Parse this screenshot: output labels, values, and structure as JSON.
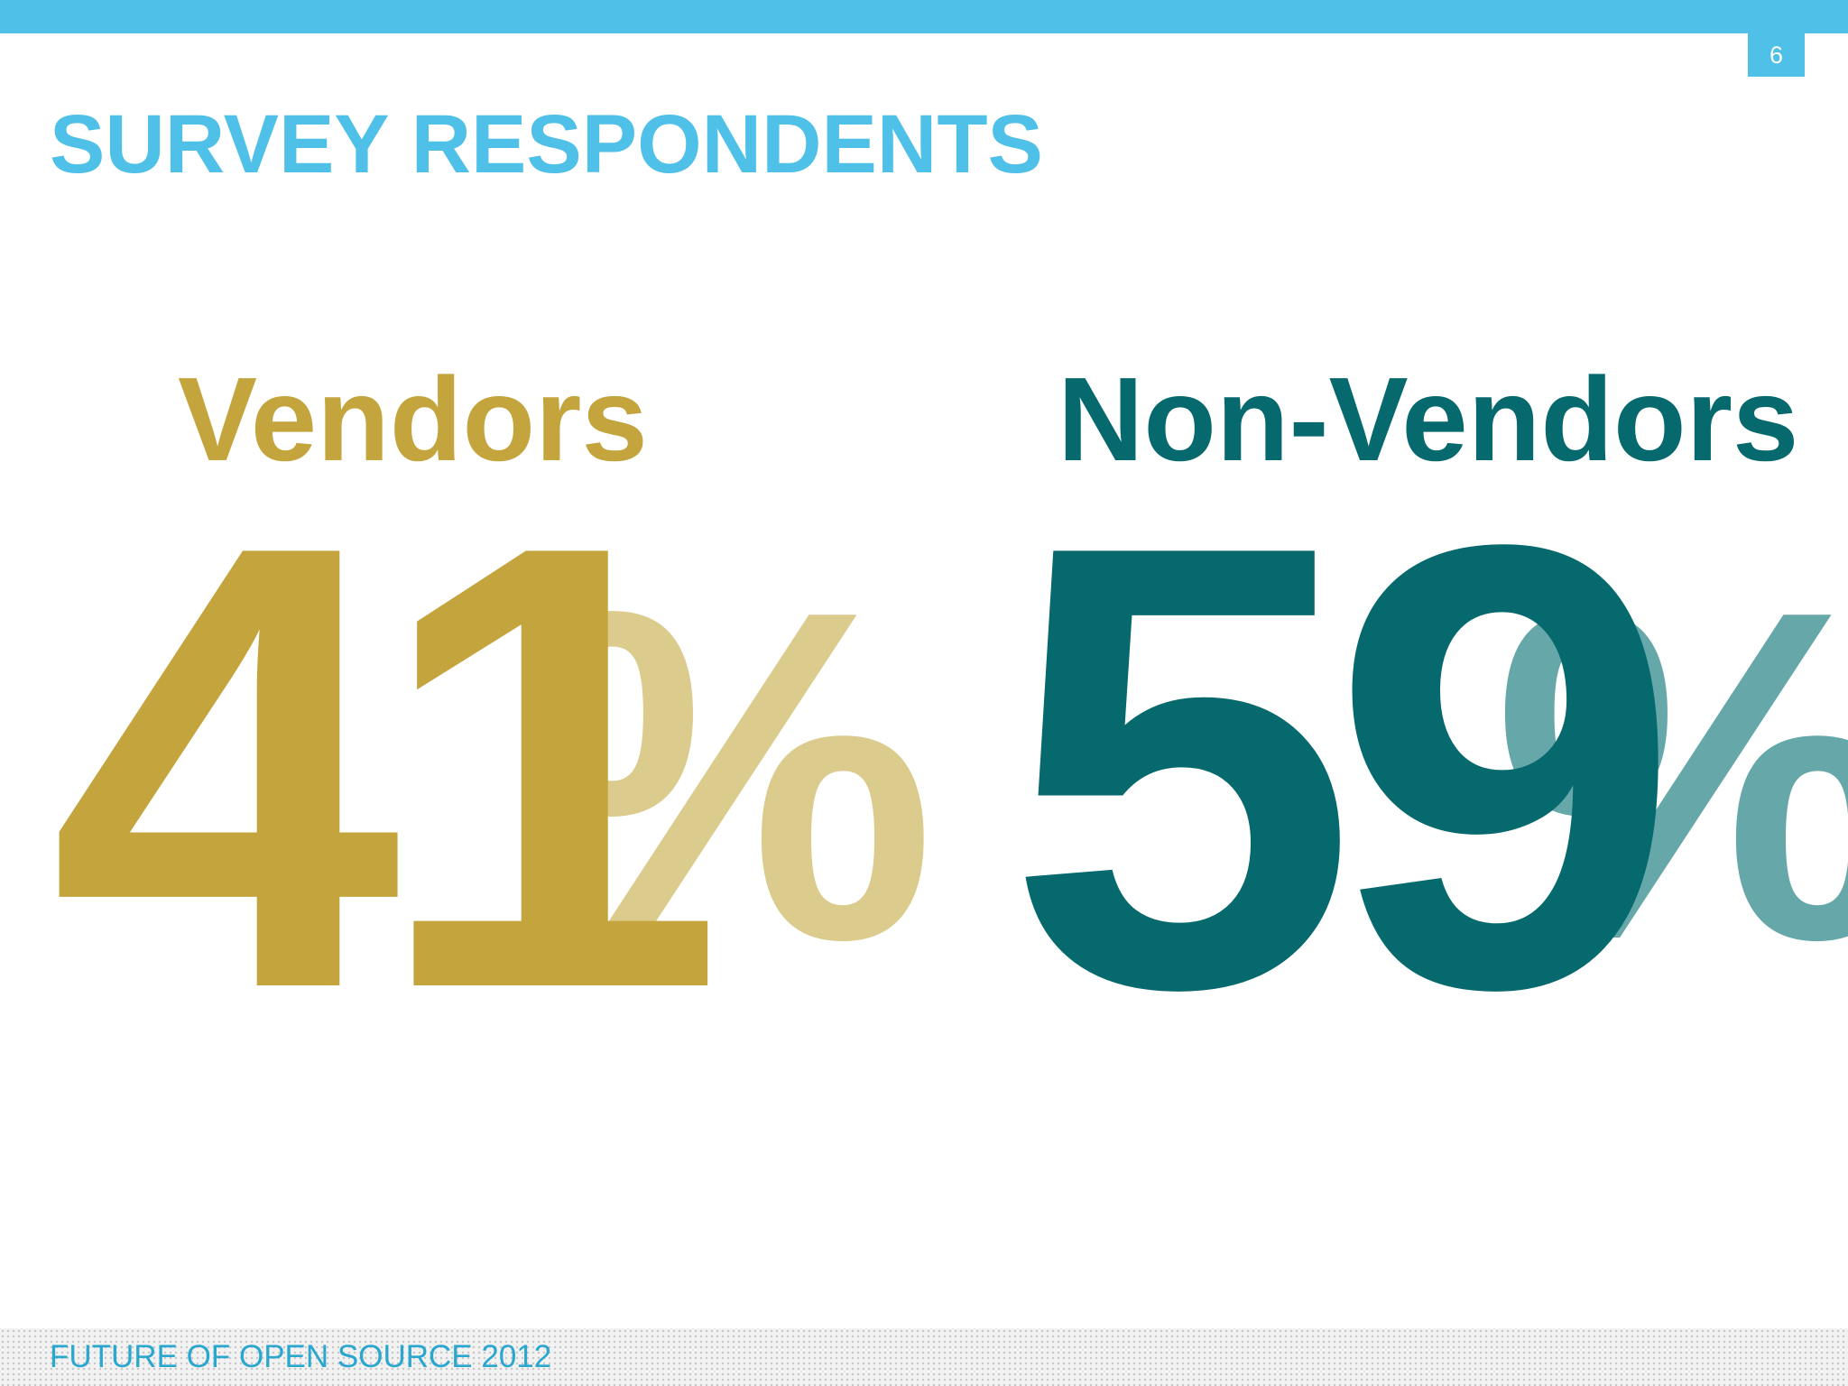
{
  "slide": {
    "page_number": "6",
    "title": "SURVEY RESPONDENTS",
    "footer": "FUTURE OF OPEN SOURCE 2012"
  },
  "stats": {
    "vendors": {
      "label": "Vendors",
      "number": "41",
      "percent_sign": "%",
      "color": "#C4A43D",
      "light_color": "#DBCB8D"
    },
    "non_vendors": {
      "label": "Non-Vendors",
      "number": "59",
      "percent_sign": "%",
      "color": "#05696D",
      "light_color": "#66A7A9"
    }
  },
  "chart_data": {
    "type": "table",
    "categories": [
      "Vendors",
      "Non-Vendors"
    ],
    "values": [
      41,
      59
    ],
    "title": "SURVEY RESPONDENTS"
  }
}
